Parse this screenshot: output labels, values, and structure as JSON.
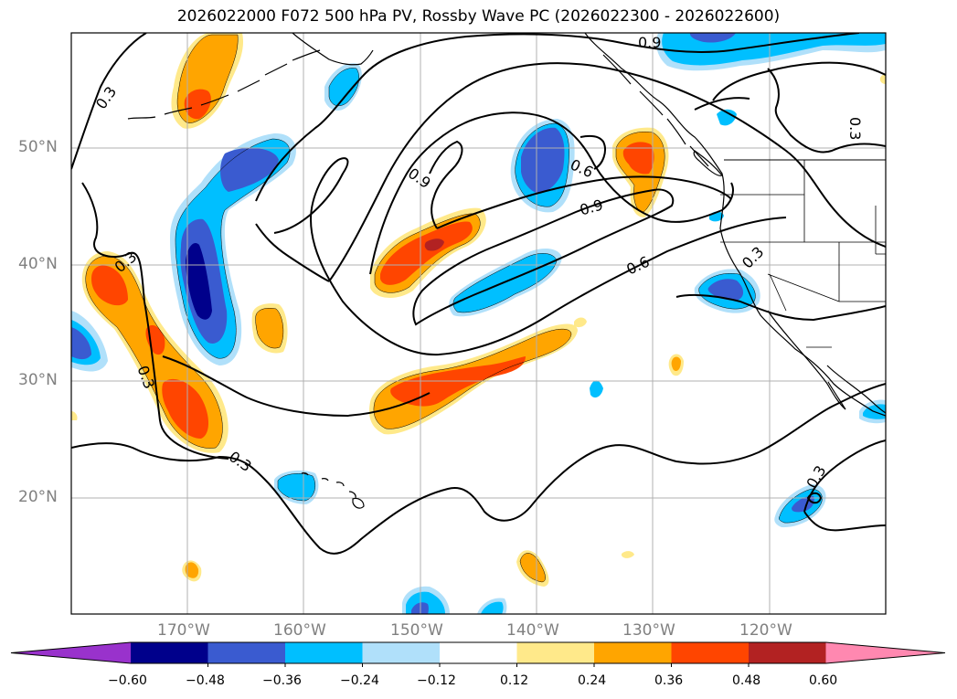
{
  "title": "2026022000 F072 500 hPa PV, Rossby Wave PC (2026022300 - 2026022600)",
  "lat_labels": [
    "50°N",
    "40°N",
    "30°N",
    "20°N"
  ],
  "lon_labels": [
    "170°W",
    "160°W",
    "150°W",
    "140°W",
    "130°W",
    "120°W"
  ],
  "contour_labels": [
    "0.3",
    "0.3",
    "0.3",
    "0.3",
    "0.3",
    "0.3",
    "0.3",
    "0.6",
    "0.6",
    "0.9",
    "0.9",
    "0.9",
    "0.3"
  ],
  "colorbar": {
    "ticks": [
      "−0.60",
      "−0.48",
      "−0.36",
      "−0.24",
      "−0.12",
      "0.12",
      "0.24",
      "0.36",
      "0.48",
      "0.60"
    ],
    "colors": [
      "#9932cc",
      "#00008b",
      "#3a5bd0",
      "#00bfff",
      "#b0e0fa",
      "#ffffff",
      "#ffe98a",
      "#ffa500",
      "#ff4500",
      "#b22222",
      "#ff88b0"
    ]
  }
}
